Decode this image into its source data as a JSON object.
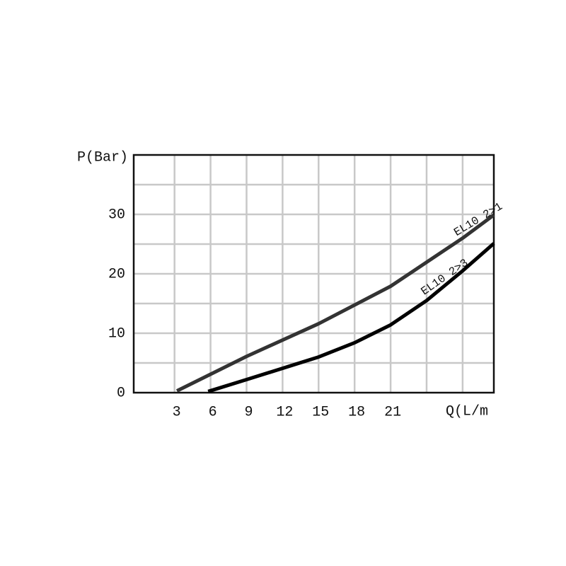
{
  "chart_data": {
    "type": "line",
    "x_label": "Q(L/m",
    "y_label": "P(Bar)",
    "xlim": [
      -0.4,
      29.6
    ],
    "ylim": [
      0,
      40
    ],
    "xticks": [
      3,
      6,
      9,
      12,
      15,
      18,
      21
    ],
    "yticks": [
      0,
      10,
      20,
      30
    ],
    "xgrid": [
      3,
      6,
      9,
      12,
      15,
      18,
      21,
      24,
      27
    ],
    "ygrid": [
      5,
      10,
      15,
      20,
      25,
      30,
      35
    ],
    "grid": true,
    "series": [
      {
        "name": "EL10 2>1",
        "color": "#333333",
        "x": [
          3.2,
          9,
          15,
          21,
          27,
          29.6
        ],
        "values": [
          0.3,
          6.1,
          11.6,
          17.9,
          26,
          29.9
        ]
      },
      {
        "name": "EL10 2>3",
        "color": "#000000",
        "x": [
          5.8,
          9,
          15,
          18,
          21,
          24,
          27,
          29.6
        ],
        "values": [
          0.2,
          2.2,
          6,
          8.4,
          11.4,
          15.5,
          20.5,
          25.1
        ]
      }
    ]
  }
}
